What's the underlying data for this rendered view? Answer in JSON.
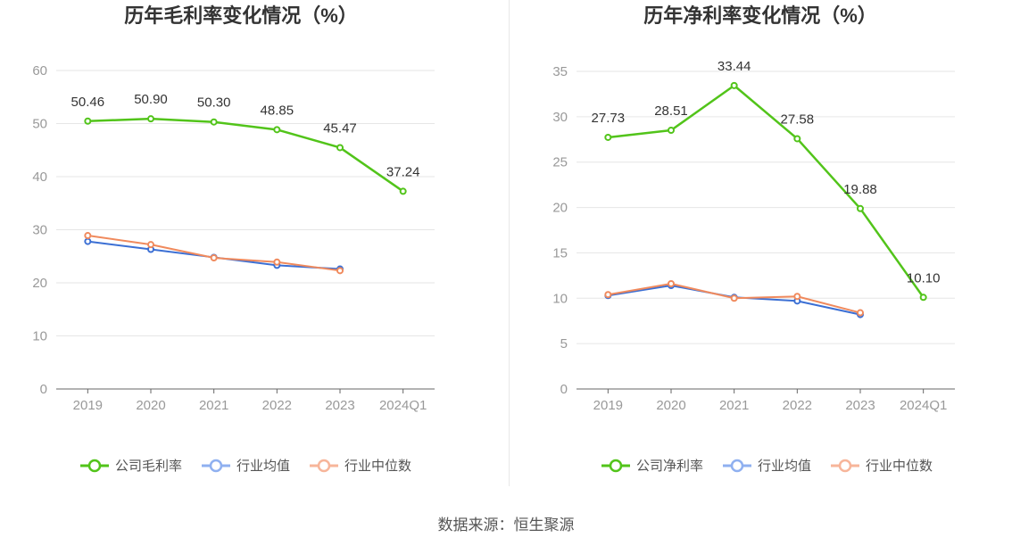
{
  "footer": {
    "source": "数据来源：恒生聚源"
  },
  "chart_data": [
    {
      "type": "line",
      "title": "历年毛利率变化情况（%）",
      "categories": [
        "2019",
        "2020",
        "2021",
        "2022",
        "2023",
        "2024Q1"
      ],
      "ylim": [
        0,
        60
      ],
      "yticks": [
        0,
        10,
        20,
        30,
        40,
        50,
        60
      ],
      "grid": true,
      "legend_position": "bottom",
      "series": [
        {
          "name": "公司毛利率",
          "color": "#52c41a",
          "labels": true,
          "values": [
            50.46,
            50.9,
            50.3,
            48.85,
            45.47,
            37.24
          ]
        },
        {
          "name": "行业均值",
          "color": "#3b6fd4",
          "legend_color": "#8fb0f0",
          "labels": false,
          "values": [
            27.8,
            26.3,
            24.8,
            23.3,
            22.6,
            null
          ]
        },
        {
          "name": "行业中位数",
          "color": "#f08a5d",
          "legend_color": "#f7b59a",
          "labels": false,
          "values": [
            28.9,
            27.2,
            24.7,
            23.9,
            22.3,
            null
          ]
        }
      ]
    },
    {
      "type": "line",
      "title": "历年净利率变化情况（%）",
      "categories": [
        "2019",
        "2020",
        "2021",
        "2022",
        "2023",
        "2024Q1"
      ],
      "ylim": [
        0,
        35
      ],
      "yticks": [
        0,
        5,
        10,
        15,
        20,
        25,
        30,
        35
      ],
      "grid": true,
      "legend_position": "bottom",
      "series": [
        {
          "name": "公司净利率",
          "color": "#52c41a",
          "labels": true,
          "values": [
            27.73,
            28.51,
            33.44,
            27.58,
            19.88,
            10.1
          ]
        },
        {
          "name": "行业均值",
          "color": "#3b6fd4",
          "legend_color": "#8fb0f0",
          "labels": false,
          "values": [
            10.3,
            11.4,
            10.1,
            9.7,
            8.2,
            null
          ]
        },
        {
          "name": "行业中位数",
          "color": "#f08a5d",
          "legend_color": "#f7b59a",
          "labels": false,
          "values": [
            10.4,
            11.6,
            10.0,
            10.2,
            8.4,
            null
          ]
        }
      ]
    }
  ]
}
